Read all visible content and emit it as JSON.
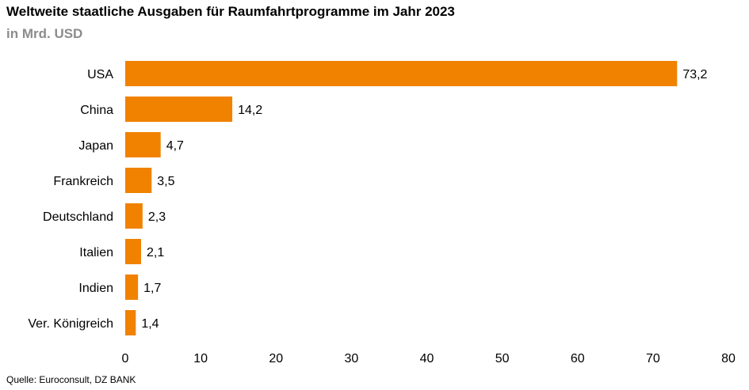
{
  "chart_data": {
    "type": "bar",
    "orientation": "horizontal",
    "title": "Weltweite staatliche Ausgaben für Raumfahrtprogramme im Jahr 2023",
    "subtitle": "in Mrd. USD",
    "categories": [
      "USA",
      "China",
      "Japan",
      "Frankreich",
      "Deutschland",
      "Italien",
      "Indien",
      "Ver. Königreich"
    ],
    "values": [
      73.2,
      14.2,
      4.7,
      3.5,
      2.3,
      2.1,
      1.7,
      1.4
    ],
    "value_labels": [
      "73,2",
      "14,2",
      "4,7",
      "3,5",
      "2,3",
      "2,1",
      "1,7",
      "1,4"
    ],
    "xlim": [
      0,
      80
    ],
    "xticks": [
      0,
      10,
      20,
      30,
      40,
      50,
      60,
      70,
      80
    ],
    "grid": false,
    "bar_color": "#f08200",
    "source": "Quelle: Euroconsult, DZ BANK"
  }
}
